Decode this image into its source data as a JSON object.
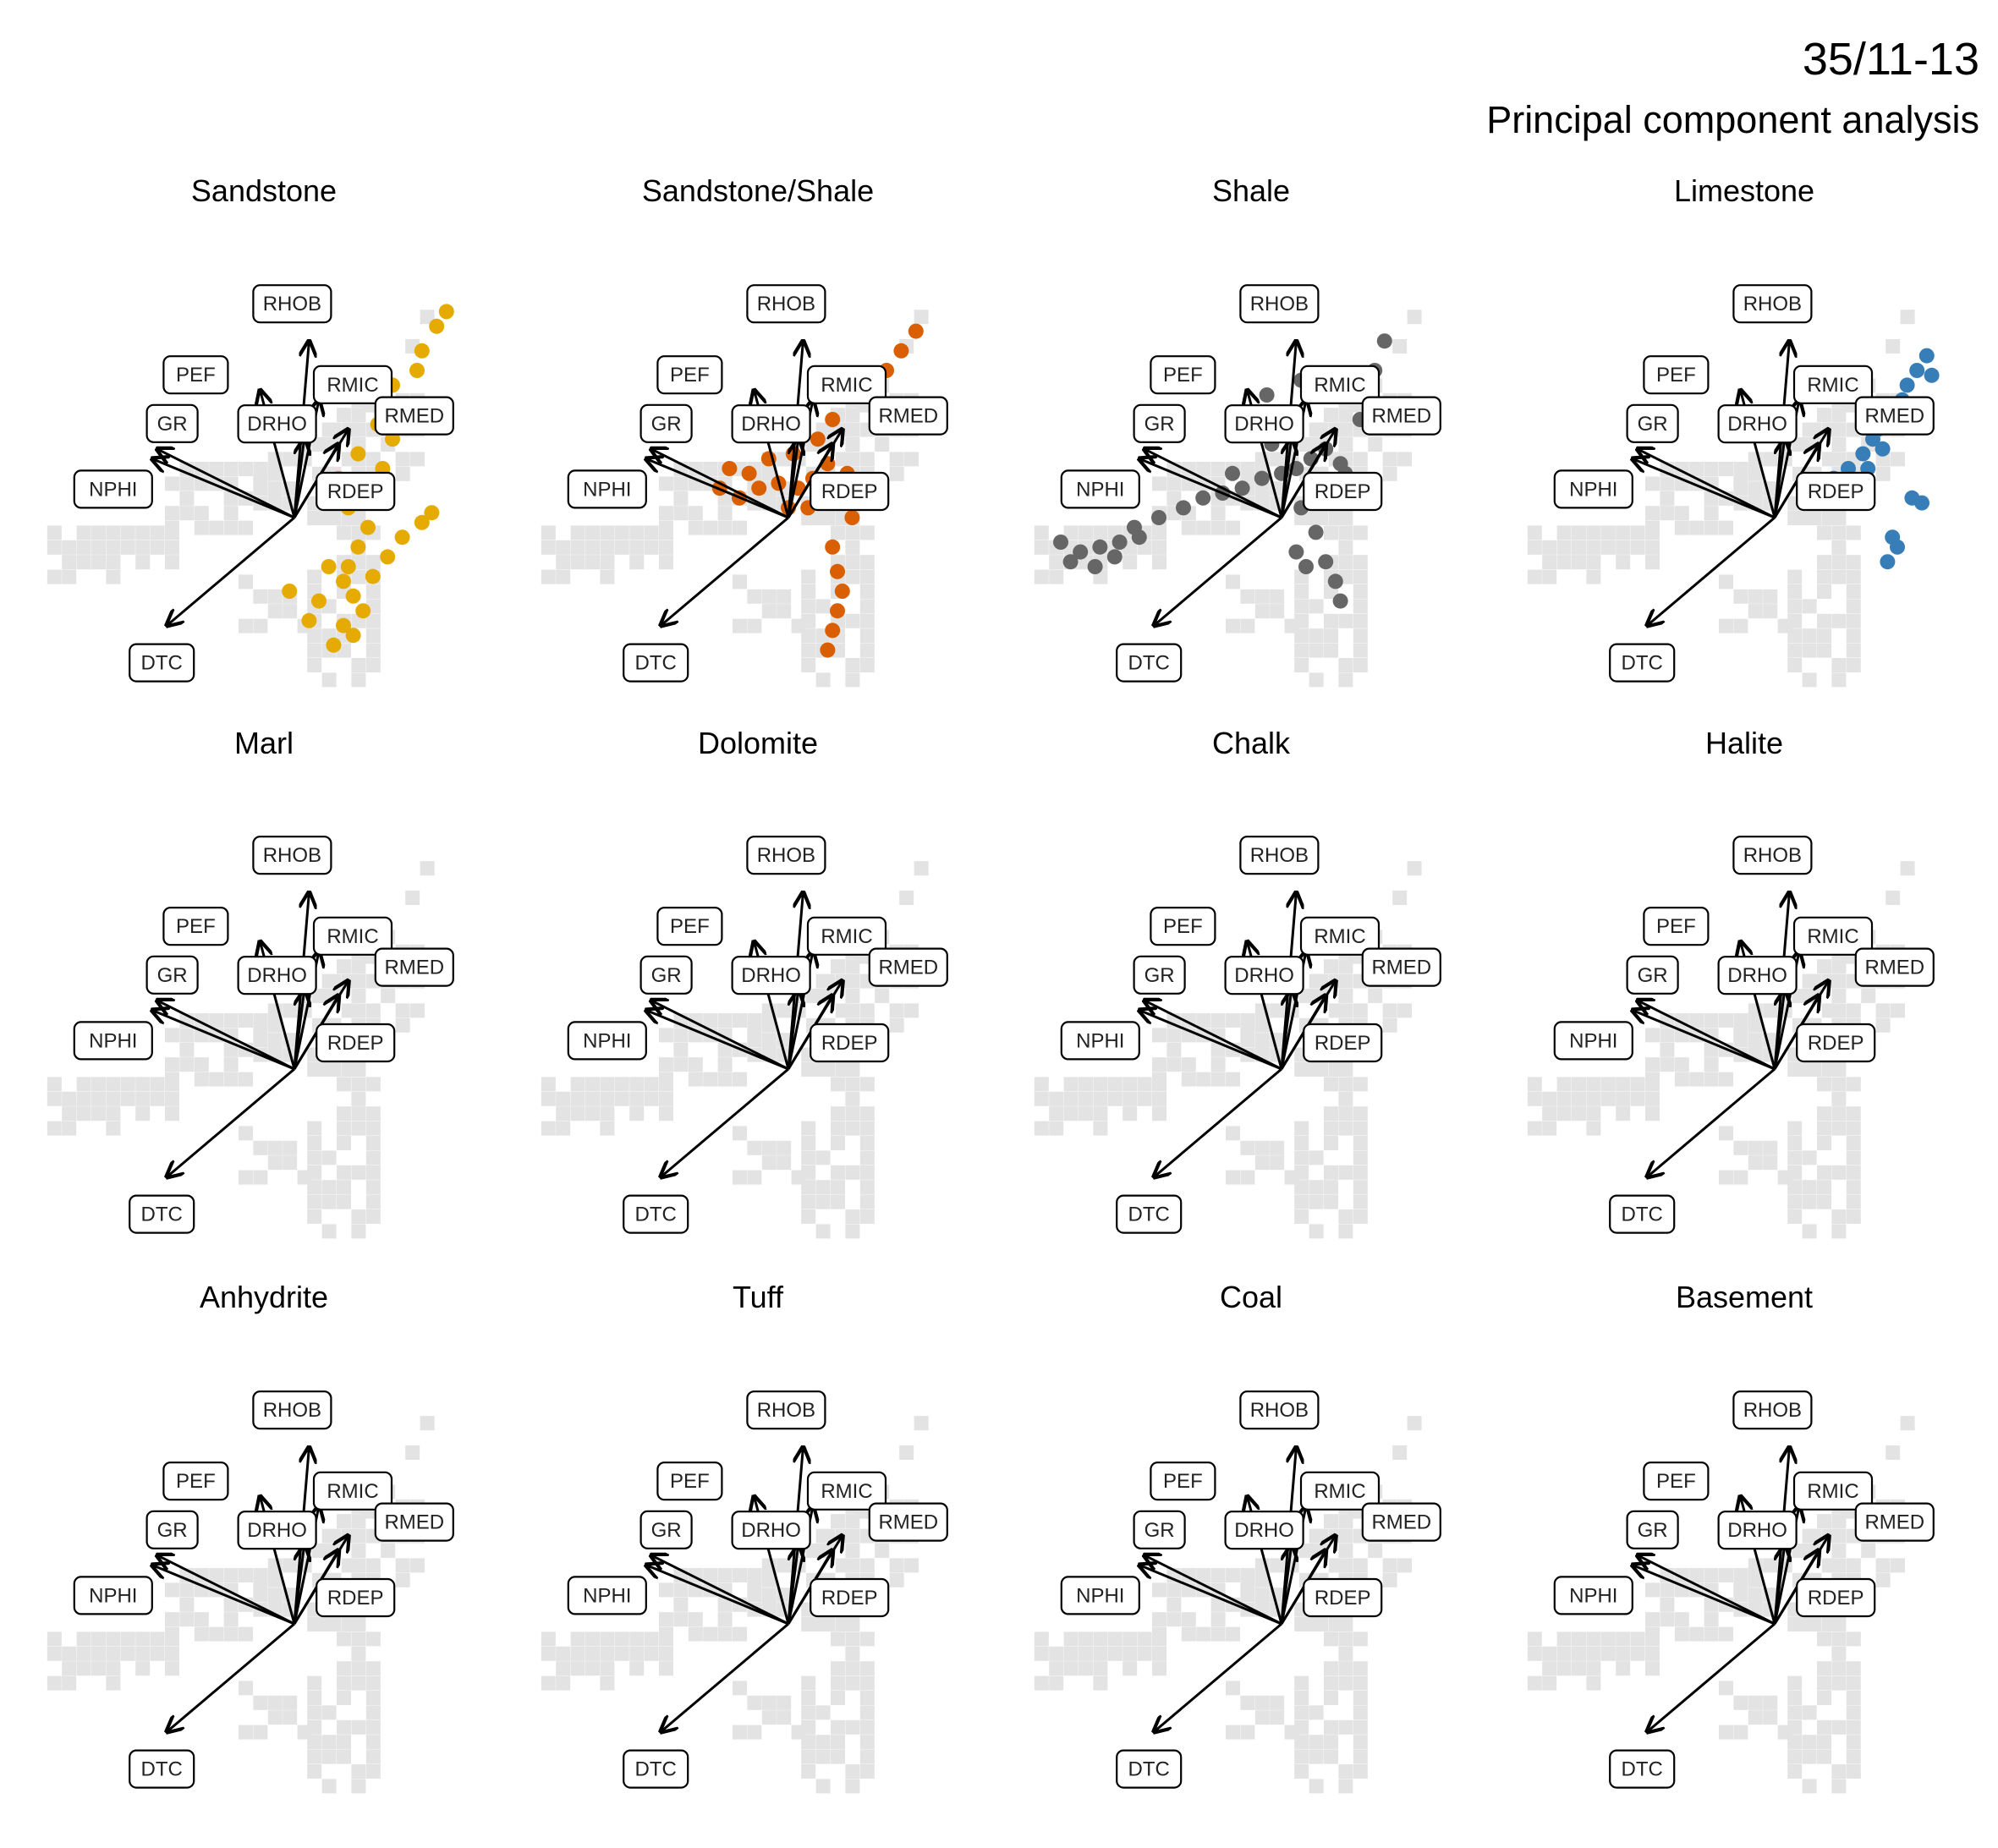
{
  "header": {
    "well": "35/11-13",
    "subtitle": "Principal component analysis"
  },
  "chart_data": {
    "type": "scatter",
    "title": "Principal component analysis",
    "panels": [
      {
        "name": "Sandstone",
        "color": "#E6AB02",
        "points": [
          [
            1.1,
            -1.0
          ],
          [
            1.3,
            -0.6
          ],
          [
            1.0,
            -1.3
          ],
          [
            1.5,
            -0.2
          ],
          [
            1.2,
            -1.6
          ],
          [
            1.6,
            0.3
          ],
          [
            1.8,
            1.0
          ],
          [
            2.0,
            1.6
          ],
          [
            2.2,
            2.3
          ],
          [
            2.5,
            3.0
          ],
          [
            2.6,
            3.4
          ],
          [
            2.9,
            3.9
          ],
          [
            3.1,
            4.2
          ],
          [
            1.4,
            -1.9
          ],
          [
            1.0,
            -2.2
          ],
          [
            0.8,
            -2.6
          ],
          [
            1.2,
            -2.4
          ],
          [
            1.6,
            -1.2
          ],
          [
            1.9,
            -0.8
          ],
          [
            2.2,
            -0.4
          ],
          [
            2.6,
            -0.1
          ],
          [
            2.8,
            0.1
          ],
          [
            0.7,
            -1.0
          ],
          [
            0.5,
            -1.7
          ],
          [
            0.3,
            -2.1
          ],
          [
            -0.1,
            -1.5
          ],
          [
            1.1,
            0.2
          ],
          [
            0.9,
            0.8
          ],
          [
            1.3,
            1.3
          ],
          [
            1.7,
            1.9
          ],
          [
            2.0,
            2.7
          ]
        ]
      },
      {
        "name": "Sandstone/Shale",
        "color": "#D95F02",
        "points": [
          [
            -1.0,
            0.4
          ],
          [
            -0.6,
            0.6
          ],
          [
            -0.2,
            0.7
          ],
          [
            0.2,
            0.6
          ],
          [
            0.5,
            0.8
          ],
          [
            0.8,
            1.1
          ],
          [
            1.0,
            0.6
          ],
          [
            -0.8,
            0.9
          ],
          [
            -0.4,
            1.2
          ],
          [
            0.1,
            1.3
          ],
          [
            0.6,
            1.6
          ],
          [
            0.9,
            2.0
          ],
          [
            1.3,
            2.6
          ],
          [
            2.0,
            3.0
          ],
          [
            2.3,
            3.4
          ],
          [
            2.6,
            3.8
          ],
          [
            -1.4,
            0.6
          ],
          [
            -1.2,
            1.0
          ],
          [
            0.4,
            0.2
          ],
          [
            0.7,
            0.4
          ],
          [
            1.2,
            0.9
          ],
          [
            0.9,
            -0.6
          ],
          [
            1.0,
            -1.1
          ],
          [
            1.1,
            -1.5
          ],
          [
            1.0,
            -1.9
          ],
          [
            0.9,
            -2.3
          ],
          [
            0.8,
            -2.7
          ],
          [
            1.3,
            0.0
          ],
          [
            1.6,
            0.4
          ],
          [
            0.0,
            0.2
          ]
        ]
      },
      {
        "name": "Shale",
        "color": "#666666",
        "points": [
          [
            -4.5,
            -0.5
          ],
          [
            -4.1,
            -0.7
          ],
          [
            -3.7,
            -0.6
          ],
          [
            -3.3,
            -0.5
          ],
          [
            -2.9,
            -0.4
          ],
          [
            -4.3,
            -0.9
          ],
          [
            -3.8,
            -1.0
          ],
          [
            -3.4,
            -0.8
          ],
          [
            -3.0,
            -0.2
          ],
          [
            -2.5,
            0.0
          ],
          [
            -2.0,
            0.2
          ],
          [
            -1.6,
            0.4
          ],
          [
            -1.2,
            0.5
          ],
          [
            -0.8,
            0.6
          ],
          [
            -0.4,
            0.8
          ],
          [
            0.0,
            0.9
          ],
          [
            0.3,
            1.0
          ],
          [
            0.6,
            1.2
          ],
          [
            0.9,
            1.4
          ],
          [
            1.2,
            1.1
          ],
          [
            0.6,
            0.5
          ],
          [
            0.4,
            0.2
          ],
          [
            1.0,
            0.6
          ],
          [
            1.3,
            0.9
          ],
          [
            0.7,
            -0.3
          ],
          [
            0.9,
            -0.9
          ],
          [
            1.1,
            -1.3
          ],
          [
            1.2,
            -1.7
          ],
          [
            0.3,
            -0.7
          ],
          [
            0.5,
            -1.0
          ],
          [
            -0.6,
            2.0
          ],
          [
            -0.3,
            2.5
          ],
          [
            0.4,
            2.8
          ],
          [
            1.6,
            2.0
          ],
          [
            1.9,
            3.0
          ],
          [
            2.1,
            3.6
          ],
          [
            -1.0,
            0.9
          ],
          [
            -0.2,
            1.5
          ]
        ]
      },
      {
        "name": "Limestone",
        "color": "#377EB8",
        "points": [
          [
            1.8,
            1.3
          ],
          [
            2.0,
            1.6
          ],
          [
            2.3,
            1.9
          ],
          [
            2.5,
            2.2
          ],
          [
            2.7,
            2.7
          ],
          [
            2.9,
            3.0
          ],
          [
            3.1,
            3.3
          ],
          [
            2.6,
            2.4
          ],
          [
            2.2,
            1.4
          ],
          [
            1.9,
            1.0
          ],
          [
            2.1,
            1.8
          ],
          [
            2.8,
            0.4
          ],
          [
            3.0,
            0.3
          ],
          [
            2.5,
            -0.6
          ],
          [
            2.3,
            -0.9
          ],
          [
            2.4,
            -0.4
          ],
          [
            1.5,
            1.0
          ],
          [
            1.2,
            0.8
          ],
          [
            2.7,
            2.0
          ],
          [
            3.2,
            2.9
          ]
        ]
      },
      {
        "name": "Marl",
        "color": "#1B9E77",
        "points": []
      },
      {
        "name": "Dolomite",
        "color": "#7570B3",
        "points": []
      },
      {
        "name": "Chalk",
        "color": "#66A61E",
        "points": []
      },
      {
        "name": "Halite",
        "color": "#E7298A",
        "points": []
      },
      {
        "name": "Anhydrite",
        "color": "#A6761D",
        "points": []
      },
      {
        "name": "Tuff",
        "color": "#4DAF4A",
        "points": []
      },
      {
        "name": "Coal",
        "color": "#000000",
        "points": []
      },
      {
        "name": "Basement",
        "color": "#984EA3",
        "points": []
      }
    ],
    "loadings": [
      {
        "name": "RHOB",
        "x": 0.3,
        "y": 3.6
      },
      {
        "name": "RMIC",
        "x": 0.5,
        "y": 2.4
      },
      {
        "name": "PEF",
        "x": -0.7,
        "y": 2.6
      },
      {
        "name": "GR",
        "x": -2.8,
        "y": 1.4
      },
      {
        "name": "NPHI",
        "x": -2.9,
        "y": 1.2
      },
      {
        "name": "DRHO",
        "x": 0.2,
        "y": 1.6
      },
      {
        "name": "RMED",
        "x": 1.1,
        "y": 1.8
      },
      {
        "name": "RDEP",
        "x": 0.9,
        "y": 1.5
      },
      {
        "name": "DTC",
        "x": -2.6,
        "y": -2.2
      }
    ],
    "xlim": [
      -5,
      4.5
    ],
    "ylim": [
      -3.5,
      5
    ],
    "grid": false,
    "legend": "none"
  }
}
